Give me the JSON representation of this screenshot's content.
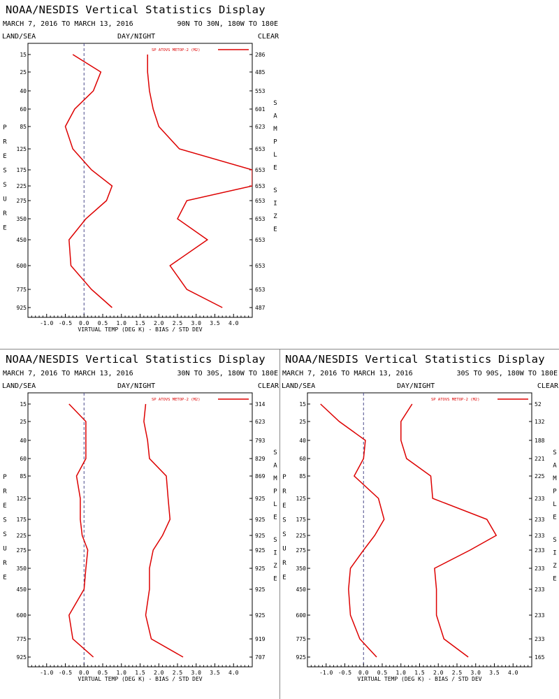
{
  "display_title": "NOAA/NESDIS Vertical Statistics Display",
  "date_range": "MARCH 7, 2016 TO MARCH 13, 2016",
  "labels": {
    "land_sea": "LAND/SEA",
    "day_night": "DAY/NIGHT",
    "clear": "CLEAR",
    "xlabel": "VIRTUAL TEMP (DEG K) - BIAS / STD DEV",
    "left_vertical": "PRESSURE",
    "right_vertical_1": "SAMPLE",
    "right_vertical_2": "SIZE"
  },
  "colors": {
    "series": "#dd0000",
    "axis": "#000000",
    "zero_line": "#4a4a8a"
  },
  "chart_data": [
    {
      "type": "line",
      "region": "90N TO 30N, 180W TO 180E",
      "legend": "SP ATOVS METOP-2 (M2)",
      "pressure_levels": [
        15,
        25,
        40,
        60,
        85,
        125,
        175,
        225,
        275,
        350,
        450,
        600,
        775,
        925
      ],
      "sample_size": [
        286,
        485,
        553,
        601,
        623,
        653,
        653,
        653,
        653,
        653,
        653,
        653,
        653,
        487
      ],
      "xlim": [
        -1.5,
        4.5
      ],
      "x_ticks": [
        "-1.0",
        "-0.5",
        "0.0",
        "0.5",
        "1.0",
        "1.5",
        "2.0",
        "2.5",
        "3.0",
        "3.5",
        "4.0"
      ],
      "series": [
        {
          "values": [
            -0.3,
            0.45,
            0.25,
            -0.25,
            -0.5,
            -0.3,
            0.2,
            0.75,
            0.6,
            0.05,
            -0.4,
            -0.35,
            0.2,
            0.75
          ]
        },
        {
          "values": [
            1.7,
            1.7,
            1.75,
            1.85,
            2.0,
            2.55,
            4.5,
            4.5,
            2.75,
            2.5,
            3.3,
            2.3,
            2.75,
            3.7
          ]
        }
      ]
    },
    {
      "type": "line",
      "region": "30N TO 30S, 180W TO 180E",
      "legend": "SP ATOVS METOP-2 (M2)",
      "pressure_levels": [
        15,
        25,
        40,
        60,
        85,
        125,
        175,
        225,
        275,
        350,
        450,
        600,
        775,
        925
      ],
      "sample_size": [
        314,
        623,
        793,
        829,
        869,
        925,
        925,
        925,
        925,
        925,
        925,
        925,
        919,
        707
      ],
      "xlim": [
        -1.5,
        4.5
      ],
      "x_ticks": [
        "-1.0",
        "-0.5",
        "0.0",
        "0.5",
        "1.0",
        "1.5",
        "2.0",
        "2.5",
        "3.0",
        "3.5",
        "4.0"
      ],
      "series": [
        {
          "values": [
            -0.4,
            0.05,
            0.05,
            0.05,
            -0.2,
            -0.1,
            -0.1,
            -0.05,
            0.1,
            0.05,
            0.0,
            -0.4,
            -0.3,
            0.25
          ]
        },
        {
          "values": [
            1.65,
            1.6,
            1.7,
            1.75,
            2.2,
            2.25,
            2.3,
            2.1,
            1.85,
            1.75,
            1.75,
            1.65,
            1.8,
            2.65
          ]
        }
      ]
    },
    {
      "type": "line",
      "region": "30S TO 90S, 180W TO 180E",
      "legend": "SP ATOVS METOP-2 (M2)",
      "pressure_levels": [
        15,
        25,
        40,
        60,
        85,
        125,
        175,
        225,
        275,
        350,
        450,
        600,
        775,
        925
      ],
      "sample_size": [
        52,
        132,
        188,
        221,
        225,
        233,
        233,
        233,
        233,
        233,
        233,
        233,
        233,
        165
      ],
      "xlim": [
        -1.5,
        4.5
      ],
      "x_ticks": [
        "-1.0",
        "-0.5",
        "0.0",
        "0.5",
        "1.0",
        "1.5",
        "2.0",
        "2.5",
        "3.0",
        "3.5",
        "4.0"
      ],
      "series": [
        {
          "values": [
            -1.15,
            -0.65,
            0.05,
            0.0,
            -0.25,
            0.4,
            0.55,
            0.3,
            0.0,
            -0.35,
            -0.4,
            -0.35,
            -0.1,
            0.35
          ]
        },
        {
          "values": [
            1.3,
            1.0,
            1.0,
            1.15,
            1.8,
            1.85,
            3.3,
            3.55,
            2.85,
            1.9,
            1.95,
            1.95,
            2.15,
            2.8
          ]
        }
      ]
    }
  ]
}
